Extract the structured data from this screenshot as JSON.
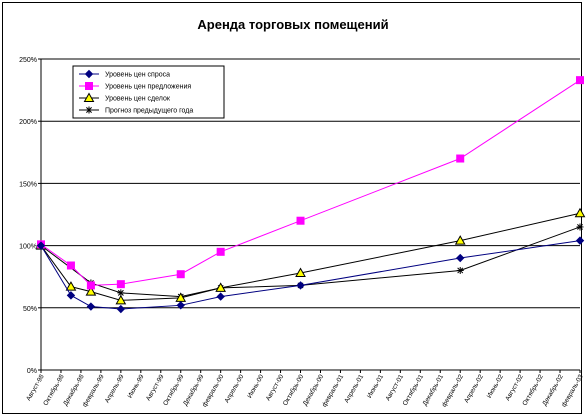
{
  "chart_data": {
    "type": "line",
    "title": "Аренда торговых помещений",
    "y_ticks": [
      "0%",
      "50%",
      "100%",
      "150%",
      "200%",
      "250%"
    ],
    "ylim": [
      0,
      250
    ],
    "y_unit": "%",
    "categories": [
      "Август-98",
      "Октябрь-98",
      "Декабрь-98",
      "февраль-99",
      "Апрель-99",
      "Июнь-99",
      "Август-99",
      "Октябрь-99",
      "Декабрь-99",
      "февраль-00",
      "Апрель-00",
      "Июнь-00",
      "Август-00",
      "Октябрь-00",
      "Декабрь-00",
      "февраль-01",
      "Апрель-01",
      "Июнь-01",
      "Август-01",
      "Октябрь-01",
      "Декабрь-01",
      "февраль-02",
      "Апрель-02",
      "Июнь-02",
      "Август-02",
      "Октябрь-02",
      "Декабрь-02",
      "февраль-03"
    ],
    "grid": "horizontal",
    "legend_position": "top-left",
    "series": [
      {
        "name": "Уровень цен спроса",
        "color": "#000080",
        "marker": "diamond",
        "x": [
          0,
          1.5,
          2.5,
          4,
          7,
          9,
          13,
          21,
          27
        ],
        "values": [
          100,
          60,
          51,
          49,
          52,
          59,
          68,
          90,
          104
        ]
      },
      {
        "name": "Уровень цен предложения",
        "color": "#FF00FF",
        "marker": "square",
        "x": [
          0,
          1.5,
          2.5,
          4,
          7,
          9,
          13,
          21,
          27
        ],
        "values": [
          101,
          84,
          68,
          69,
          77,
          95,
          120,
          170,
          233
        ]
      },
      {
        "name": "Уровень цен сделок",
        "color": "#000000",
        "marker": "triangle",
        "x": [
          0,
          1.5,
          2.5,
          4,
          7,
          9,
          13,
          21,
          27
        ],
        "values": [
          100,
          67,
          63,
          56,
          58,
          66,
          78,
          104,
          126
        ]
      },
      {
        "name": "Прогноз предыдущего года",
        "color": "#000000",
        "marker": "star",
        "x": [
          0,
          2.5,
          4,
          7,
          9,
          13,
          21,
          27
        ],
        "values": [
          100,
          70,
          62,
          59,
          66,
          68,
          80,
          115
        ]
      }
    ]
  }
}
